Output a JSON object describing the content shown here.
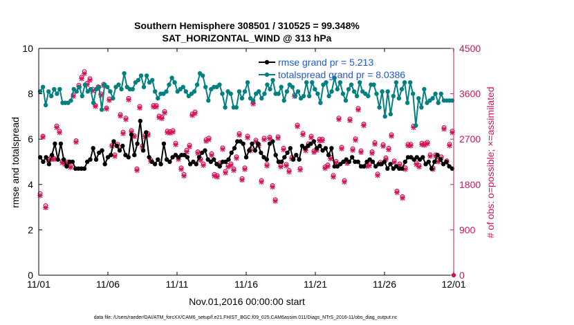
{
  "chart_data": {
    "type": "line",
    "title_line1": "Southern Hemisphere 308501 / 310525 = 99.348%",
    "title_line2": "SAT_HORIZONTAL_WIND @ 313 hPa",
    "xlabel": "Nov.01,2016 00:00:00 start",
    "ylabel_left": "rmse and totalspread",
    "ylabel_right": "# of obs: o=possible; ×=assimilated",
    "footer": "data file: /Users/raeder/DAI/ATM_forcXX/CAM6_setup/f.e21.FHIST_BGC.f09_025.CAM6assim.011/Diags_NTrS_2016-11/obs_diag_output.nc",
    "x_ticks": [
      "11/01",
      "11/06",
      "11/11",
      "11/16",
      "11/21",
      "11/26",
      "12/01"
    ],
    "xlim_days": [
      0,
      30
    ],
    "ylim_left": [
      0,
      10
    ],
    "yticks_left": [
      "0",
      "2",
      "4",
      "6",
      "8",
      "10"
    ],
    "ylim_right": [
      0,
      4500
    ],
    "yticks_right": [
      "0",
      "900",
      "1800",
      "2700",
      "3600",
      "4500"
    ],
    "colors": {
      "rmse": "#000000",
      "spread": "#00807f",
      "obs": "#d6135a",
      "legend_text": "#1f5bd6",
      "axis": "#000000"
    },
    "legend": [
      "rmse grand pr = 5.213",
      "totalspread grand pr = 8.0386"
    ],
    "series": [
      {
        "name": "rmse",
        "values": [
          5.2,
          5.0,
          5.2,
          4.9,
          5.3,
          5.8,
          5.1,
          5.8,
          5.1,
          4.8,
          5.0,
          5.0,
          4.7,
          4.7,
          4.7,
          4.7,
          5.0,
          5.1,
          5.6,
          5.1,
          5.4,
          5.5,
          4.9,
          5.2,
          5.3,
          5.9,
          5.7,
          5.5,
          5.7,
          5.3,
          5.2,
          6.2,
          5.3,
          5.8,
          6.8,
          5.5,
          6.3,
          5.2,
          5.0,
          4.9,
          5.1,
          4.9,
          5.8,
          5.1,
          5.0,
          5.2,
          5.3,
          5.2,
          5.3,
          5.3,
          5.2,
          4.9,
          5.0,
          4.9,
          5.2,
          5.4,
          5.5,
          5.1,
          5.0,
          5.1,
          4.9,
          4.8,
          5.0,
          5.0,
          5.1,
          5.4,
          5.6,
          5.9,
          5.9,
          5.8,
          5.2,
          5.5,
          5.8,
          5.5,
          5.8,
          5.4,
          5.2,
          5.1,
          5.8,
          5.9,
          5.3,
          5.0,
          5.0,
          5.2,
          5.4,
          5.6,
          5.1,
          5.3,
          5.1,
          5.7,
          5.6,
          5.7,
          5.8,
          5.9,
          5.6,
          5.7,
          5.5,
          5.6,
          5.3,
          5.6,
          4.8,
          4.8,
          4.9,
          5.0,
          5.1,
          5.0,
          5.2,
          5.0,
          5.0,
          4.8,
          4.8,
          5.0,
          5.1,
          5.0,
          4.8,
          4.9,
          4.9,
          5.0,
          4.7,
          4.9,
          4.7,
          4.8,
          4.7,
          4.7,
          5.0,
          5.2,
          5.2,
          5.1,
          5.2,
          5.1,
          5.2,
          4.9,
          5.0,
          4.7,
          5.0,
          5.3,
          5.1,
          4.9,
          5.0,
          4.8,
          4.7
        ]
      },
      {
        "name": "totalspread",
        "values": [
          8.1,
          8.3,
          7.5,
          8.1,
          7.9,
          8.2,
          8.0,
          8.2,
          7.6,
          7.6,
          7.6,
          7.7,
          8.2,
          8.1,
          8.3,
          7.9,
          8.4,
          8.1,
          8.2,
          7.6,
          8.2,
          8.3,
          7.3,
          8.4,
          8.3,
          8.1,
          7.8,
          8.3,
          8.4,
          8.2,
          8.9,
          8.3,
          8.2,
          8.2,
          8.5,
          8.6,
          8.8,
          8.3,
          8.8,
          8.5,
          8.6,
          8.1,
          7.8,
          8.0,
          8.0,
          8.1,
          8.4,
          8.7,
          8.5,
          8.1,
          8.2,
          8.3,
          8.1,
          7.9,
          8.0,
          8.1,
          8.4,
          8.9,
          8.8,
          8.3,
          7.7,
          8.2,
          8.3,
          8.3,
          8.4,
          8.0,
          7.4,
          8.1,
          8.0,
          7.4,
          7.4,
          8.1,
          7.8,
          8.1,
          8.5,
          7.8,
          7.7,
          8.0,
          8.1,
          7.8,
          8.0,
          8.4,
          8.2,
          8.6,
          8.0,
          8.0,
          8.3,
          7.7,
          8.1,
          8.4,
          8.3,
          7.9,
          8.1,
          7.8,
          7.9,
          8.5,
          7.9,
          8.5,
          8.2,
          8.0,
          7.6,
          8.4,
          8.5,
          7.9,
          8.1,
          8.7,
          8.2,
          8.5,
          8.0,
          7.7,
          8.2,
          8.4,
          8.1,
          7.9,
          8.5,
          8.1,
          8.0,
          7.9,
          8.4,
          8.4,
          8.0,
          7.4,
          8.1,
          7.0,
          8.1,
          7.1,
          7.9,
          8.5,
          7.8,
          8.2,
          8.5,
          7.6,
          8.5,
          8.0,
          6.6,
          7.8,
          7.4,
          8.2,
          7.6,
          7.7,
          7.8,
          8.0,
          7.6,
          8.0,
          7.7,
          7.7,
          7.7,
          7.7
        ]
      },
      {
        "name": "obs_possible",
        "values": [
          1620,
          2760,
          1380,
          2300,
          2340,
          2320,
          2960,
          2860,
          2260,
          2230,
          2250,
          2160,
          3580,
          2670,
          3770,
          3930,
          4040,
          3810,
          3900,
          3690,
          3370,
          3740,
          3600,
          3790,
          3320,
          3500,
          2580,
          2390,
          2600,
          3190,
          2840,
          3120,
          3510,
          2870,
          2770,
          2110,
          3350,
          2570,
          2780,
          2810,
          2290,
          3370,
          3370,
          3160,
          3140,
          3250,
          2860,
          2850,
          2870,
          2620,
          2330,
          2130,
          2000,
          2480,
          2580,
          3200,
          3240,
          2450,
          2310,
          2210,
          2690,
          2720,
          2410,
          2000,
          1980,
          2230,
          2530,
          2060,
          2180,
          2210,
          2110,
          2350,
          2810,
          1920,
          2130,
          2760,
          2500,
          3430,
          2680,
          2600,
          1880,
          2720,
          2200,
          2740,
          1780,
          1500,
          2750,
          2180,
          2520,
          2200,
          2080,
          2340,
          3580,
          2980,
          2120,
          2820,
          2500,
          2610,
          2760,
          2470,
          2510,
          2700,
          2700,
          2150,
          2190,
          2340,
          1980,
          2260,
          3120,
          2540,
          1880,
          2250,
          3100,
          2510,
          2710,
          3310,
          2470,
          3000,
          2190,
          2200,
          2450,
          2630,
          2010,
          2240,
          2590,
          2330,
          2520,
          2790,
          2270,
          1670,
          2210,
          1560,
          2130,
          2600,
          2600,
          2960,
          2230,
          2180,
          2620,
          2610,
          2640,
          2390,
          2130,
          2390,
          2280,
          2350,
          2930,
          2270,
          2600,
          2860
        ]
      },
      {
        "name": "obs_assimilated",
        "values": [
          1580,
          2740,
          1340,
          2280,
          2300,
          2300,
          2930,
          2830,
          2230,
          2200,
          2220,
          2140,
          3550,
          2640,
          3740,
          3900,
          4000,
          3780,
          3870,
          3660,
          3350,
          3710,
          3570,
          3760,
          3300,
          3470,
          2560,
          2360,
          2570,
          3160,
          2810,
          3090,
          3480,
          2840,
          2750,
          2080,
          3320,
          2540,
          2750,
          2780,
          2260,
          3340,
          3340,
          3130,
          3110,
          3220,
          2830,
          2820,
          2840,
          2590,
          2300,
          2100,
          1970,
          2450,
          2550,
          3170,
          3210,
          2420,
          2280,
          2180,
          2660,
          2690,
          2380,
          1970,
          1950,
          2200,
          2500,
          2030,
          2150,
          2180,
          2080,
          2320,
          2780,
          1890,
          2100,
          2730,
          2470,
          3400,
          2650,
          2570,
          1850,
          2690,
          2170,
          2710,
          1750,
          1470,
          2720,
          2150,
          2490,
          2170,
          2050,
          2310,
          3550,
          2950,
          2090,
          2790,
          2470,
          2580,
          2730,
          2440,
          2480,
          2670,
          2670,
          2120,
          2160,
          2310,
          1950,
          2230,
          3090,
          2510,
          1850,
          2220,
          3070,
          2480,
          2680,
          3280,
          2440,
          2970,
          2160,
          2170,
          2420,
          2600,
          1980,
          2210,
          2560,
          2300,
          2490,
          2760,
          2240,
          1640,
          2180,
          1530,
          2100,
          2570,
          2570,
          2930,
          2200,
          2150,
          2590,
          2580,
          2610,
          2360,
          2100,
          2360,
          2250,
          2320,
          2900,
          2240,
          2570,
          2830
        ]
      }
    ],
    "right_edge_marker": "0"
  }
}
